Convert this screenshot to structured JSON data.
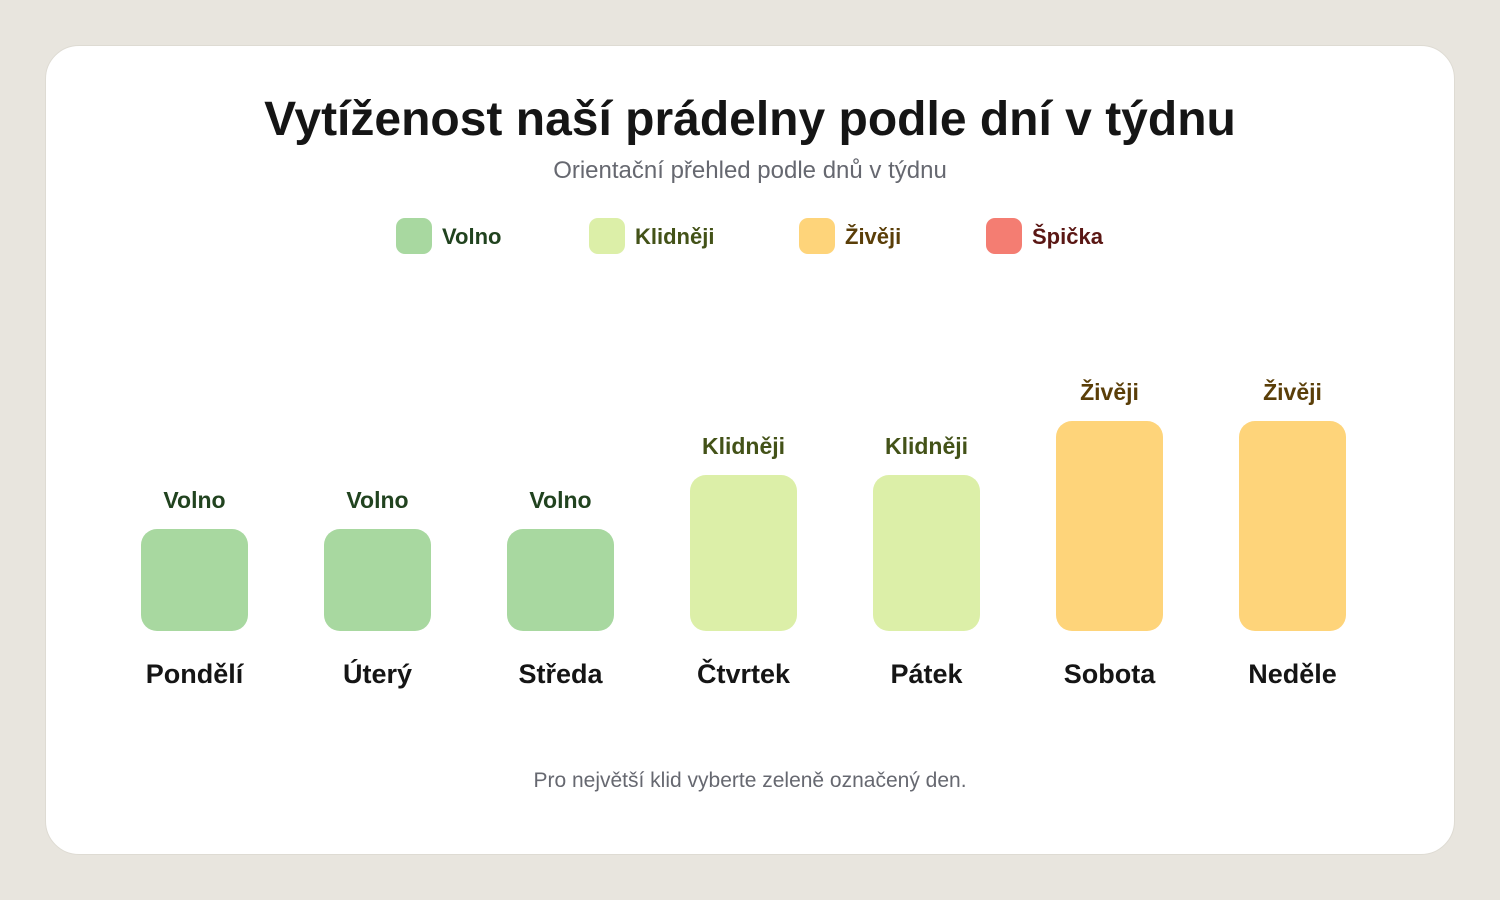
{
  "chart_data": {
    "type": "bar",
    "title": "Vytíženost naší prádelny podle dní v týdnu",
    "subtitle": "Orientační přehled podle dnů v týdnu",
    "footnote": "Pro největší klid vyberte zeleně označený den.",
    "legend_position": "top",
    "levels": [
      {
        "name": "Volno",
        "value": 1,
        "color": "#a8d8a0",
        "text_color": "#21431f"
      },
      {
        "name": "Klidněji",
        "value": 2,
        "color": "#dcefa8",
        "text_color": "#435218"
      },
      {
        "name": "Živěji",
        "value": 3,
        "color": "#fed47a",
        "text_color": "#5a3e08"
      },
      {
        "name": "Špička",
        "value": 4,
        "color": "#f47d72",
        "text_color": "#5a1714"
      }
    ],
    "categories": [
      "Pondělí",
      "Úterý",
      "Středa",
      "Čtvrtek",
      "Pátek",
      "Sobota",
      "Neděle"
    ],
    "values": [
      1,
      1,
      1,
      2,
      2,
      3,
      3
    ],
    "value_labels": [
      "Volno",
      "Volno",
      "Volno",
      "Klidněji",
      "Klidněji",
      "Živěji",
      "Živěji"
    ],
    "ylim": [
      0,
      4
    ]
  }
}
